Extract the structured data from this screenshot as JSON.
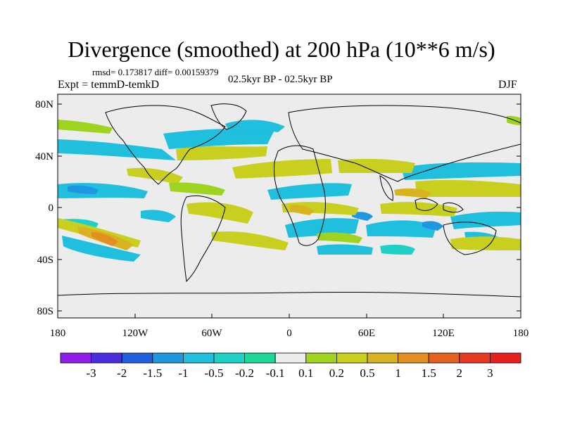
{
  "title": "Divergence (smoothed) at 200 hPa (10**6 m/s)",
  "stats": "rmsd= 0.173817 diff= 0.00159379",
  "experiment": "Expt = temmD-temkD",
  "period": "02.5kyr BP - 02.5kyr BP",
  "season": "DJF",
  "lat_ticks": [
    "80N",
    "40N",
    "0",
    "40S",
    "80S"
  ],
  "lon_ticks": [
    "180",
    "120W",
    "60W",
    "0",
    "60E",
    "120E",
    "180"
  ],
  "colorbar": {
    "labels": [
      "-3",
      "-2",
      "-1.5",
      "-1",
      "-0.5",
      "-0.2",
      "-0.1",
      "0.1",
      "0.2",
      "0.5",
      "1",
      "1.5",
      "2",
      "3"
    ],
    "colors": [
      "#8d1fe6",
      "#4a2ee0",
      "#1f5fe0",
      "#1f97e0",
      "#1fbfdd",
      "#1fd0c6",
      "#1fd69a",
      "#ececec",
      "#9ed41f",
      "#c9cf1f",
      "#d9b21f",
      "#e28f1f",
      "#e5611f",
      "#e6391f",
      "#e61f1f"
    ]
  },
  "colors": {
    "background": "#ececec",
    "coast": "#000000"
  }
}
